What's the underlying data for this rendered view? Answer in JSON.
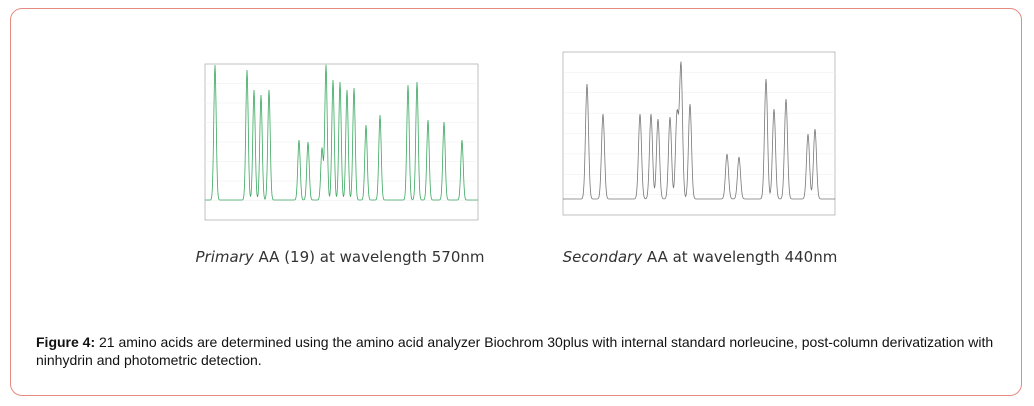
{
  "panels": [
    {
      "caption_italic": "Primary",
      "caption_rest": "AA (19) at wavelength 570nm"
    },
    {
      "caption_italic": "Secondary",
      "caption_rest": "AA at wavelength 440nm"
    }
  ],
  "figure_caption": {
    "label": "Figure 4:",
    "text": "21 amino acids are determined using the amino acid analyzer Biochrom 30plus with internal standard norleucine, post-column derivatization with ninhydrin and photometric detection."
  }
}
